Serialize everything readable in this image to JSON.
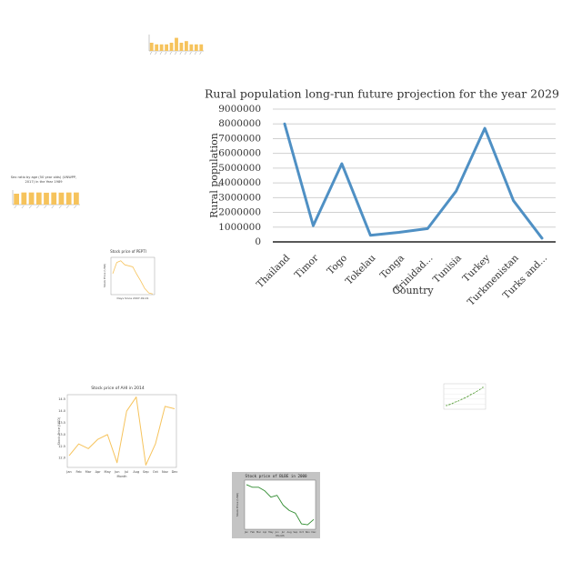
{
  "chart_data": [
    {
      "id": "main",
      "type": "line",
      "title": "Rural population long-run future projection for the year 2029",
      "xlabel": "Country",
      "ylabel": "Rural population",
      "categories": [
        "Thailand",
        "Timor",
        "Togo",
        "Tokelau",
        "Tonga",
        "Trinidad...",
        "Tunisia",
        "Turkey",
        "Turkmenistan",
        "Turks and..."
      ],
      "values": [
        8000000,
        1100000,
        5300000,
        450000,
        650000,
        900000,
        3450000,
        7700000,
        2800000,
        250000
      ],
      "yticks": [
        "0",
        "1000000",
        "2000000",
        "3000000",
        "4000000",
        "5000000",
        "6000000",
        "7000000",
        "8000000",
        "9000000"
      ],
      "ylim": [
        0,
        9000000
      ],
      "grid": true,
      "color": "#4f90c4"
    },
    {
      "id": "top-bar",
      "type": "bar",
      "title": "",
      "categories": [
        "c1",
        "c2",
        "c3",
        "c4",
        "c5",
        "c6",
        "c7",
        "c8",
        "c9",
        "c10",
        "c11"
      ],
      "values": [
        5,
        4,
        4,
        4,
        5,
        8,
        5,
        6,
        4,
        4,
        4
      ],
      "ylim": [
        0,
        10
      ],
      "color": "#f6c35c"
    },
    {
      "id": "sex-ratio",
      "type": "bar",
      "title": "Sex ratio by age (50 year olds) (UNWPP, 2017) in the Year 1989",
      "categories": [
        "c1",
        "c2",
        "c3",
        "c4",
        "c5",
        "c6",
        "c7",
        "c8",
        "c9"
      ],
      "values": [
        0.9,
        1.0,
        1.0,
        1.0,
        0.98,
        1.0,
        0.99,
        1.0,
        1.0
      ],
      "ylim": [
        0,
        1.2
      ],
      "color": "#f6c35c"
    },
    {
      "id": "stock-pfe",
      "type": "line",
      "title": "Stock price of PEPTI",
      "xlabel": "Days Since 2007-09-01",
      "ylabel": "Stock Price (USD)",
      "values": [
        62,
        95,
        100,
        88,
        85,
        82,
        60,
        40,
        18,
        5,
        2
      ],
      "ylim": [
        0,
        110
      ],
      "color": "#f6c35c"
    },
    {
      "id": "stock-ahi",
      "type": "line",
      "title": "Stock price of AHI in 2014",
      "xlabel": "Month",
      "ylabel": "Stock Price (USD)",
      "categories": [
        "Jan",
        "Feb",
        "Mar",
        "Apr",
        "May",
        "Jun",
        "Jul",
        "Aug",
        "Sep",
        "Oct",
        "Nov",
        "Dec"
      ],
      "values": [
        12.1,
        12.6,
        12.4,
        12.8,
        13.0,
        11.8,
        14.0,
        14.6,
        11.7,
        12.6,
        14.2,
        14.1
      ],
      "yticks": [
        "12.0",
        "12.5",
        "13.0",
        "13.5",
        "14.0",
        "14.5"
      ],
      "ylim": [
        11.6,
        14.7
      ],
      "color": "#f6c35c"
    },
    {
      "id": "small-line",
      "type": "line",
      "title": "",
      "values": [
        1,
        1.3,
        1.6,
        2.0,
        2.3,
        2.7,
        3.1,
        3.5,
        4.0,
        4.4,
        4.9,
        5.4,
        6.0
      ],
      "ylim": [
        0,
        7
      ],
      "color": "#6aa84f"
    },
    {
      "id": "stock-blbe",
      "type": "line",
      "title": "Stock price of BLBE in 2000",
      "xlabel": "Month",
      "ylabel": "Stock Price (USD)",
      "categories": [
        "Jan",
        "Feb",
        "Mar",
        "Apr",
        "May",
        "Jun",
        "Jul",
        "Aug",
        "Sep",
        "Oct",
        "Nov",
        "Dec"
      ],
      "values": [
        9.0,
        8.7,
        8.7,
        8.3,
        7.6,
        7.8,
        6.7,
        6.1,
        5.8,
        4.6,
        4.5,
        5.1
      ],
      "ylim": [
        4.0,
        9.5
      ],
      "color": "#2e8b2e"
    }
  ]
}
